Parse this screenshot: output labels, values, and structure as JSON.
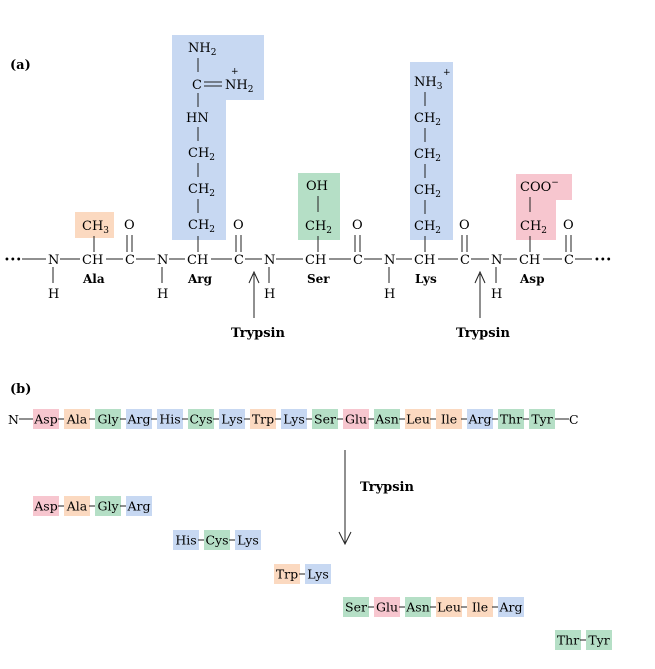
{
  "panel_a": {
    "label": "(a)",
    "backbone": {
      "lead": "•••",
      "trail": "•••",
      "n_atom": "N",
      "c_atom": "C",
      "ch": "CH",
      "carbonyl_o": "O",
      "amide_h": "H"
    },
    "residues": [
      {
        "name": "Ala",
        "color": "#fbd9c0",
        "side_chain": [
          "CH3"
        ]
      },
      {
        "name": "Arg",
        "color": "#c7d8f2",
        "side_chain": [
          "CH2",
          "CH2",
          "CH2",
          "HN",
          "C=NH2+",
          "NH2"
        ]
      },
      {
        "name": "Ser",
        "color": "#b5dfc6",
        "side_chain": [
          "CH2",
          "OH"
        ]
      },
      {
        "name": "Lys",
        "color": "#c7d8f2",
        "side_chain": [
          "CH2",
          "CH2",
          "CH2",
          "CH2",
          "NH3+"
        ]
      },
      {
        "name": "Asp",
        "color": "#f7c6cf",
        "side_chain": [
          "CH2",
          "COO−"
        ]
      }
    ],
    "cleavages": [
      {
        "label": "Trypsin",
        "after": "Arg"
      },
      {
        "label": "Trypsin",
        "after": "Lys"
      }
    ]
  },
  "panel_b": {
    "label": "(b)",
    "n_term": "N",
    "c_term": "C",
    "enzyme": "Trypsin",
    "sequence": [
      {
        "aa": "Asp",
        "color": "#f7c6cf"
      },
      {
        "aa": "Ala",
        "color": "#fbd9c0"
      },
      {
        "aa": "Gly",
        "color": "#b5dfc6"
      },
      {
        "aa": "Arg",
        "color": "#c7d8f2"
      },
      {
        "aa": "His",
        "color": "#c7d8f2"
      },
      {
        "aa": "Cys",
        "color": "#b5dfc6"
      },
      {
        "aa": "Lys",
        "color": "#c7d8f2"
      },
      {
        "aa": "Trp",
        "color": "#fbd9c0"
      },
      {
        "aa": "Lys",
        "color": "#c7d8f2"
      },
      {
        "aa": "Ser",
        "color": "#b5dfc6"
      },
      {
        "aa": "Glu",
        "color": "#f7c6cf"
      },
      {
        "aa": "Asn",
        "color": "#b5dfc6"
      },
      {
        "aa": "Leu",
        "color": "#fbd9c0"
      },
      {
        "aa": "Ile",
        "color": "#fbd9c0"
      },
      {
        "aa": "Arg",
        "color": "#c7d8f2"
      },
      {
        "aa": "Thr",
        "color": "#b5dfc6"
      },
      {
        "aa": "Tyr",
        "color": "#b5dfc6"
      }
    ],
    "fragments": [
      [
        "Asp",
        "Ala",
        "Gly",
        "Arg"
      ],
      [
        "His",
        "Cys",
        "Lys"
      ],
      [
        "Trp",
        "Lys"
      ],
      [
        "Ser",
        "Glu",
        "Asn",
        "Leu",
        "Ile",
        "Arg"
      ],
      [
        "Thr",
        "Tyr"
      ]
    ]
  }
}
